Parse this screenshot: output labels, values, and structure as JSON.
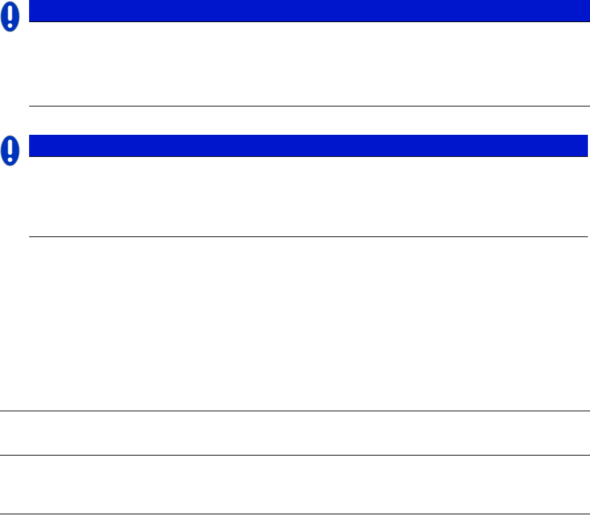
{
  "colors": {
    "notice_bar": "#0016cc",
    "icon_fill": "#0033bb",
    "rule": "#000000"
  },
  "notices": [
    {
      "icon": "exclamation-icon",
      "title": "",
      "body": ""
    },
    {
      "icon": "exclamation-icon",
      "title": "",
      "body": ""
    }
  ]
}
